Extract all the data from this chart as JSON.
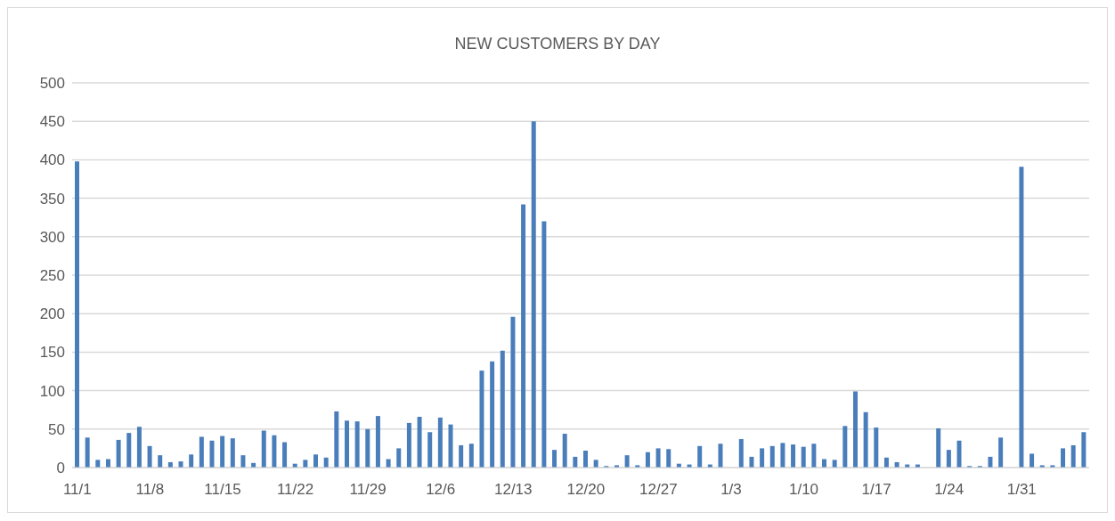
{
  "chart_data": {
    "type": "bar",
    "title": "NEW CUSTOMERS BY DAY",
    "categories": [
      "11/1",
      null,
      null,
      null,
      null,
      null,
      null,
      "11/8",
      null,
      null,
      null,
      null,
      null,
      null,
      "11/15",
      null,
      null,
      null,
      null,
      null,
      null,
      "11/22",
      null,
      null,
      null,
      null,
      null,
      null,
      "11/29",
      null,
      null,
      null,
      null,
      null,
      null,
      "12/6",
      null,
      null,
      null,
      null,
      null,
      null,
      "12/13",
      null,
      null,
      null,
      null,
      null,
      null,
      "12/20",
      null,
      null,
      null,
      null,
      null,
      null,
      "12/27",
      null,
      null,
      null,
      null,
      null,
      null,
      "1/3",
      null,
      null,
      null,
      null,
      null,
      null,
      "1/10",
      null,
      null,
      null,
      null,
      null,
      null,
      "1/17",
      null,
      null,
      null,
      null,
      null,
      null,
      "1/24",
      null,
      null,
      null,
      null,
      null,
      null,
      "1/31",
      null,
      null,
      null,
      null,
      null,
      null
    ],
    "values": [
      398,
      39,
      10,
      11,
      36,
      45,
      53,
      28,
      16,
      7,
      8,
      17,
      40,
      35,
      41,
      38,
      16,
      6,
      48,
      42,
      33,
      5,
      10,
      17,
      13,
      73,
      61,
      60,
      50,
      67,
      11,
      25,
      58,
      66,
      46,
      65,
      56,
      29,
      31,
      126,
      138,
      152,
      196,
      342,
      450,
      320,
      23,
      44,
      14,
      22,
      10,
      2,
      3,
      16,
      3,
      20,
      25,
      24,
      5,
      4,
      28,
      4,
      31,
      0,
      37,
      14,
      25,
      28,
      32,
      30,
      27,
      31,
      11,
      10,
      54,
      99,
      72,
      52,
      13,
      7,
      4,
      4,
      0,
      51,
      23,
      35,
      2,
      2,
      14,
      39,
      0,
      391,
      18,
      3,
      3,
      25,
      29,
      46
    ],
    "color": "#4a7ebb",
    "ylim": [
      0,
      500
    ],
    "yticks": [
      0,
      50,
      100,
      150,
      200,
      250,
      300,
      350,
      400,
      450,
      500
    ],
    "grid": "y"
  }
}
